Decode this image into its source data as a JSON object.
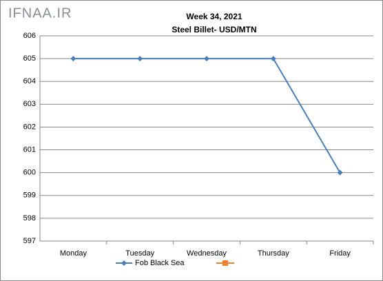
{
  "watermark": "IFNAA.IR",
  "chart_data": {
    "type": "line",
    "title": "Week 34, 2021",
    "subtitle": "Steel Billet- USD/MTN",
    "categories": [
      "Monday",
      "Tuesday",
      "Wednesday",
      "Thursday",
      "Friday"
    ],
    "series": [
      {
        "name": "Fob Black Sea",
        "color": "#4a7ebb",
        "values": [
          605,
          605,
          605,
          605,
          600
        ]
      }
    ],
    "ylim": [
      597,
      606
    ],
    "yticks": [
      597,
      598,
      599,
      600,
      601,
      602,
      603,
      604,
      605,
      606
    ],
    "grid": true
  }
}
